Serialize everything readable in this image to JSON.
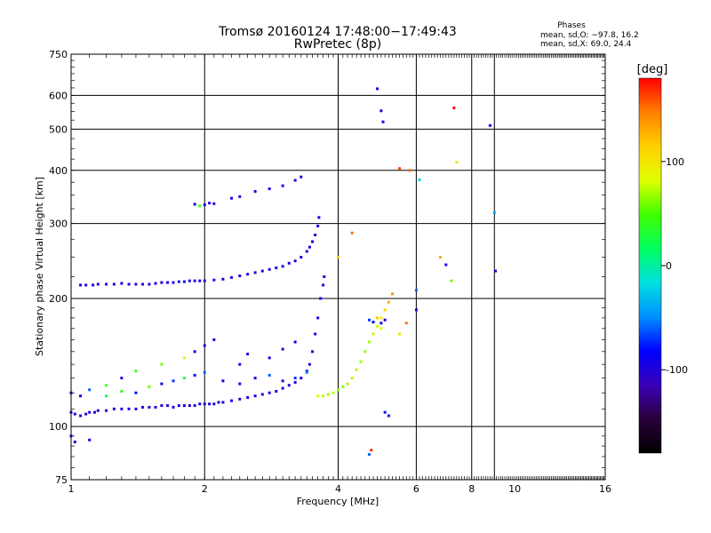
{
  "chart_data": {
    "type": "scatter",
    "title": "Tromsø 20160124 17:48:00−17:49:43",
    "subtitle": "RwPretec (8p)",
    "xlabel": "Frequency [MHz]",
    "ylabel": "Stationary phase Virtual Height [km]",
    "x_scale": "log",
    "y_scale": "log",
    "xlim": [
      1,
      16
    ],
    "ylim": [
      75,
      750
    ],
    "x_ticks": [
      1,
      2,
      4,
      6,
      8,
      10,
      16
    ],
    "x_grid": [
      1,
      2,
      4,
      6,
      8,
      9,
      16
    ],
    "y_ticks": [
      75,
      100,
      200,
      300,
      400,
      500,
      600,
      750
    ],
    "grid": true,
    "info": {
      "header": "Phases",
      "line1": "mean, sd,O: −97.8, 16.2",
      "line2": "mean, sd,X:  69.0, 24.4"
    },
    "colorbar": {
      "label": "[deg]",
      "range": [
        -180,
        180
      ],
      "ticks": [
        100,
        0,
        -100
      ],
      "colors": [
        "#000000",
        "#2a003a",
        "#3a00b8",
        "#0000ff",
        "#0090ff",
        "#00e0e0",
        "#00ff60",
        "#40ff00",
        "#e0ff00",
        "#ffd000",
        "#ff8000",
        "#ff0000"
      ]
    },
    "series": [
      {
        "x": [
          1.0,
          1.02,
          1.05,
          1.08,
          1.1,
          1.13,
          1.15,
          1.2,
          1.25,
          1.3,
          1.35,
          1.4,
          1.45,
          1.5,
          1.55,
          1.6,
          1.65,
          1.7,
          1.75,
          1.8,
          1.85,
          1.9,
          1.95,
          2.0,
          2.05,
          2.1,
          2.15,
          2.2,
          2.3,
          2.4,
          2.5,
          2.6,
          2.7,
          2.8,
          2.9,
          3.0,
          3.1,
          3.2,
          3.3,
          3.4,
          3.45,
          3.5,
          3.55,
          3.6,
          3.65,
          3.7,
          3.72
        ],
        "y": [
          108,
          107,
          106,
          107,
          108,
          108,
          109,
          109,
          110,
          110,
          110,
          110,
          111,
          111,
          111,
          112,
          112,
          111,
          112,
          112,
          112,
          112,
          113,
          113,
          113,
          113,
          114,
          114,
          115,
          116,
          117,
          118,
          119,
          120,
          121,
          123,
          125,
          127,
          130,
          135,
          140,
          150,
          165,
          180,
          200,
          215,
          225
        ],
        "phase": [
          -95,
          -100,
          -98,
          -102,
          -97,
          -95,
          -100,
          -98,
          -96,
          -99,
          -97,
          -101,
          -96,
          -98,
          -100,
          -95,
          -97,
          -99,
          -96,
          -98,
          -100,
          -97,
          -95,
          -99,
          -98,
          -96,
          -100,
          -97,
          -95,
          -98,
          -99,
          -96,
          -97,
          -100,
          -98,
          -95,
          -97,
          -99,
          -96,
          -98,
          -100,
          -97,
          -95,
          -99,
          -98,
          -96,
          -100
        ]
      },
      {
        "x": [
          1.05,
          1.08,
          1.12,
          1.15,
          1.2,
          1.25,
          1.3,
          1.35,
          1.4,
          1.45,
          1.5,
          1.55,
          1.6,
          1.65,
          1.7,
          1.75,
          1.8,
          1.85,
          1.9,
          1.95,
          2.0,
          2.1,
          2.2,
          2.3,
          2.4,
          2.5,
          2.6,
          2.7,
          2.8,
          2.9,
          3.0,
          3.1,
          3.2,
          3.3,
          3.4,
          3.45,
          3.5,
          3.55,
          3.6,
          3.62
        ],
        "y": [
          215,
          215,
          215,
          216,
          216,
          216,
          217,
          216,
          216,
          216,
          216,
          217,
          218,
          218,
          218,
          219,
          219,
          220,
          220,
          220,
          220,
          221,
          222,
          224,
          226,
          228,
          230,
          232,
          234,
          236,
          238,
          242,
          245,
          250,
          258,
          264,
          272,
          282,
          296,
          310
        ],
        "phase": [
          -98,
          -96,
          -100,
          -97,
          -99,
          -95,
          -98,
          -96,
          -100,
          -97,
          -99,
          -95,
          -98,
          -96,
          -100,
          -97,
          -99,
          -95,
          -98,
          -96,
          -100,
          -97,
          -99,
          -95,
          -98,
          -96,
          -100,
          -97,
          -99,
          -95,
          -98,
          -96,
          -100,
          -97,
          -99,
          -95,
          -98,
          -96,
          -100,
          -97
        ]
      },
      {
        "x": [
          3.6,
          3.7,
          3.8,
          3.9,
          4.0,
          4.1,
          4.2,
          4.3,
          4.4,
          4.5,
          4.6,
          4.7,
          4.8,
          4.9,
          5.0,
          5.1,
          5.2,
          5.3
        ],
        "y": [
          118,
          118,
          119,
          120,
          122,
          124,
          126,
          130,
          136,
          142,
          150,
          158,
          165,
          172,
          180,
          188,
          196,
          205
        ],
        "phase": [
          80,
          75,
          70,
          72,
          68,
          65,
          70,
          75,
          72,
          68,
          66,
          70,
          74,
          78,
          90,
          110,
          130,
          140
        ]
      },
      {
        "x": [
          1.0,
          1.05,
          1.1,
          1.2,
          1.3,
          1.4,
          1.5,
          1.6,
          1.7,
          1.8,
          1.9,
          2.0,
          2.2,
          2.4,
          2.6,
          2.8,
          3.0,
          3.2,
          3.4
        ],
        "y": [
          120,
          118,
          122,
          118,
          121,
          120,
          124,
          126,
          128,
          130,
          132,
          134,
          128,
          126,
          130,
          132,
          128,
          130,
          134
        ],
        "phase": [
          -110,
          -90,
          -60,
          20,
          40,
          -80,
          60,
          -100,
          -70,
          30,
          -90,
          -60,
          -95,
          -80,
          -100,
          -60,
          -90,
          -70,
          -50
        ]
      },
      {
        "x": [
          1.4,
          1.6,
          1.8,
          1.9,
          2.0,
          2.1,
          2.4,
          2.5,
          2.8,
          3.0,
          3.2,
          1.2,
          1.3
        ],
        "y": [
          135,
          140,
          145,
          150,
          155,
          160,
          140,
          148,
          145,
          152,
          158,
          125,
          130
        ],
        "phase": [
          40,
          60,
          80,
          -95,
          -100,
          -98,
          -97,
          -96,
          -99,
          -100,
          -95,
          50,
          -90
        ]
      },
      {
        "x": [
          1.9,
          1.95,
          2.0,
          2.05,
          2.1,
          2.3,
          2.4,
          2.6,
          2.8,
          3.0,
          3.2,
          3.3
        ],
        "y": [
          333,
          330,
          332,
          335,
          334,
          344,
          347,
          357,
          362,
          368,
          379,
          386
        ],
        "phase": [
          -100,
          40,
          -98,
          -96,
          -99,
          -97,
          -95,
          -100,
          -98,
          -96,
          -99,
          -97
        ]
      },
      {
        "x": [
          1.0,
          1.02,
          1.1
        ],
        "y": [
          95,
          92,
          93
        ],
        "phase": [
          -100,
          -98,
          -96
        ]
      },
      {
        "x": [
          4.0,
          4.3,
          4.7,
          4.8,
          4.9,
          5.0,
          5.1,
          5.5,
          5.8,
          6.0,
          6.1,
          6.8,
          7.0,
          7.2,
          7.3,
          7.4,
          8.8,
          9.0,
          9.05
        ],
        "y": [
          250,
          285,
          178,
          176,
          180,
          175,
          178,
          404,
          400,
          209,
          380,
          250,
          240,
          220,
          561,
          418,
          510,
          318,
          232
        ],
        "phase": [
          110,
          150,
          -70,
          -80,
          120,
          -95,
          -90,
          160,
          155,
          -60,
          -20,
          130,
          -90,
          60,
          180,
          100,
          -95,
          -40,
          -100
        ]
      },
      {
        "x": [
          4.9,
          5.0,
          5.05,
          4.7,
          4.75,
          5.1,
          5.2,
          5.5,
          5.0,
          6.0,
          5.7
        ],
        "y": [
          622,
          552,
          520,
          86,
          88,
          108,
          106,
          165,
          170,
          188,
          175
        ],
        "phase": [
          -95,
          -97,
          -96,
          -60,
          170,
          -80,
          -90,
          100,
          80,
          -95,
          150
        ]
      }
    ]
  }
}
